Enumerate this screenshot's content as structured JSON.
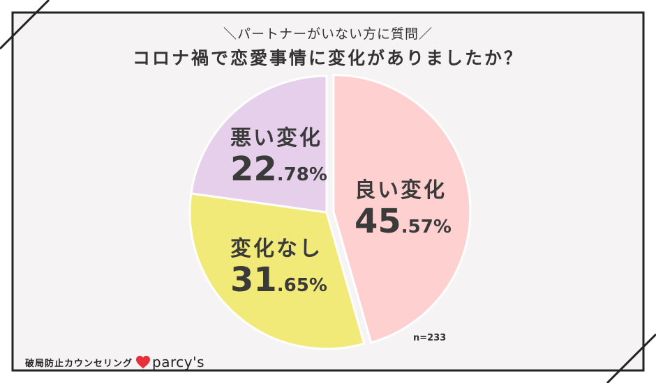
{
  "header": {
    "subtitle": "＼パートナーがいない方に質問／",
    "title": "コロナ禍で恋愛事情に変化がありましたか？"
  },
  "chart_data": {
    "type": "pie",
    "title": "コロナ禍で恋愛事情に変化がありましたか？",
    "subtitle": "＼パートナーがいない方に質問／",
    "unit": "%",
    "sample_size": "n=233",
    "start_angle": "12 o'clock",
    "direction": "clockwise",
    "slices": [
      {
        "label": "良い変化",
        "value": 45.57,
        "int": "45",
        "frac": ".57%",
        "color": "#ffd0d0",
        "exploded": true
      },
      {
        "label": "変化なし",
        "value": 31.65,
        "int": "31",
        "frac": ".65%",
        "color": "#f2ea78",
        "exploded": false
      },
      {
        "label": "悪い変化",
        "value": 22.78,
        "int": "22",
        "frac": ".78%",
        "color": "#e6cfea",
        "exploded": false
      }
    ]
  },
  "colors": {
    "panel": "#f5f3f4",
    "frame": "#222222",
    "heart": "#e8303a"
  },
  "brand": {
    "tagline": "破局防止カウンセリング",
    "name": "parcy's",
    "logo_icon": "heart-icon"
  }
}
